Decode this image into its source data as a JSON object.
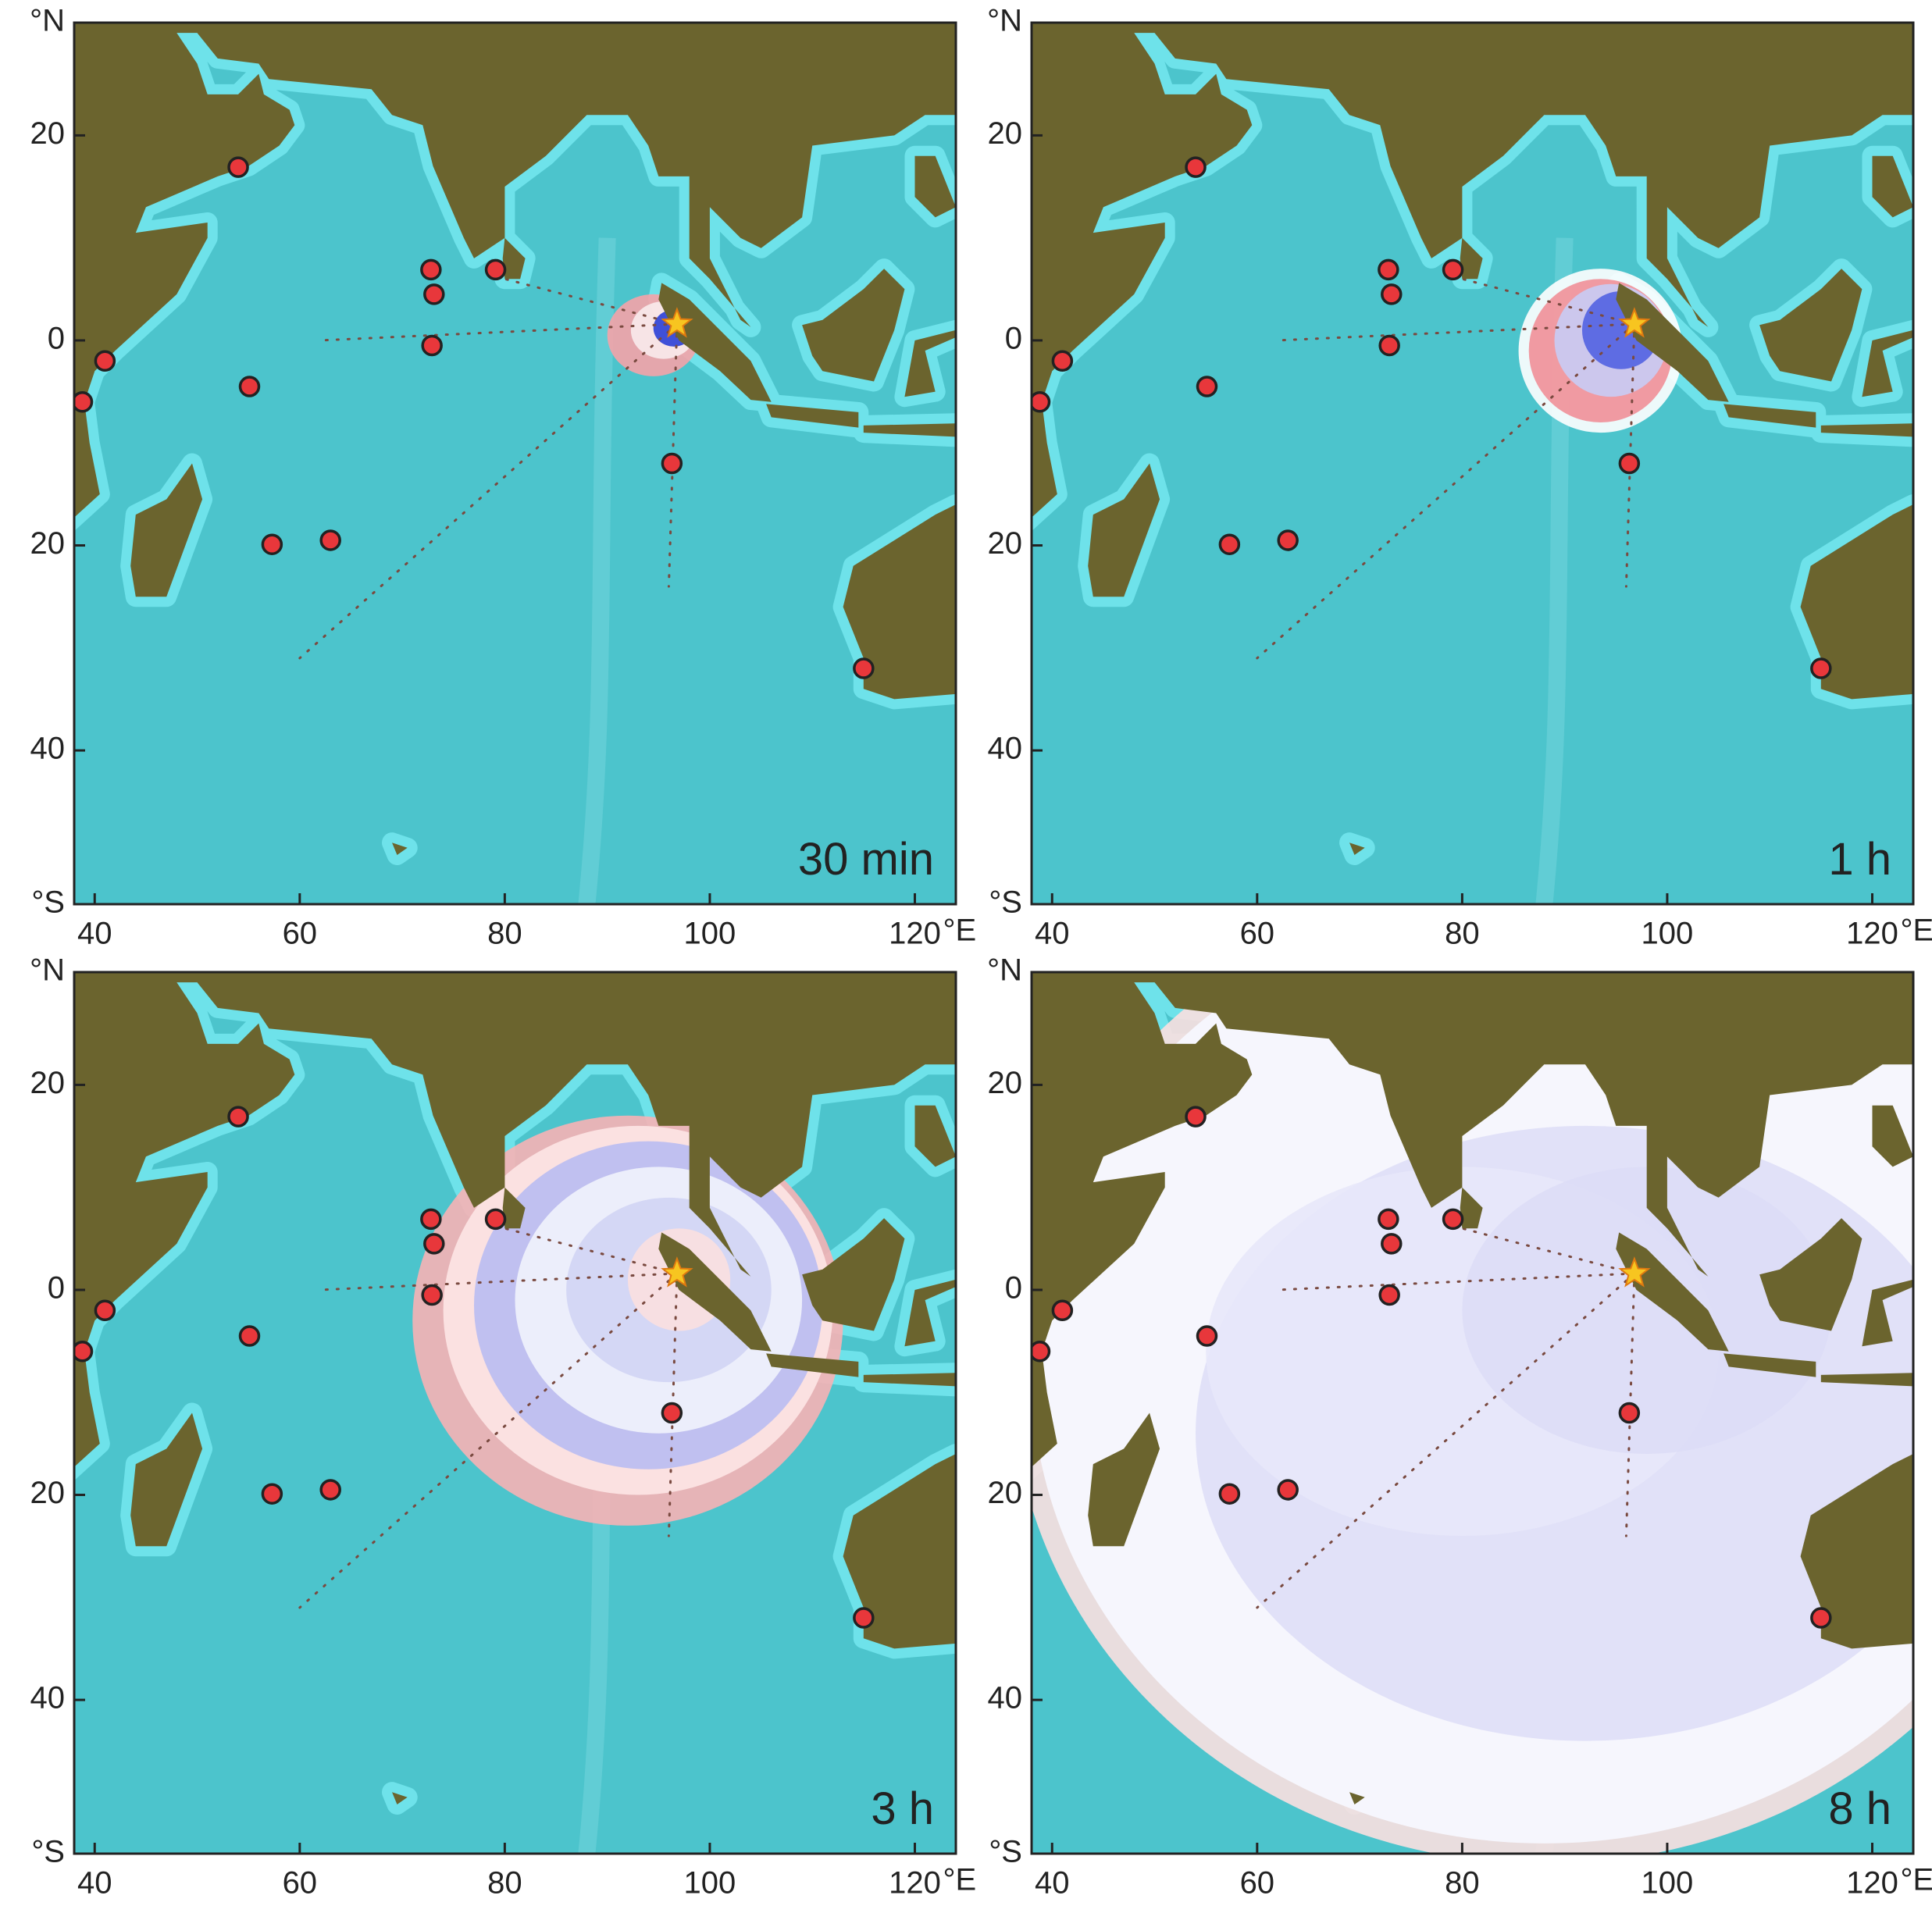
{
  "map": {
    "xlim": [
      38,
      124
    ],
    "ylim": [
      -55,
      31
    ],
    "xticks": [
      40,
      60,
      80,
      100,
      120
    ],
    "x_unit": "°E",
    "yticks": [
      {
        "value": 31,
        "label": "°N"
      },
      {
        "value": 20,
        "label": "20"
      },
      {
        "value": 0,
        "label": "0"
      },
      {
        "value": -20,
        "label": "20"
      },
      {
        "value": -40,
        "label": "40"
      },
      {
        "value": -55,
        "label": "°S"
      }
    ],
    "stations": [
      {
        "lon": 54.0,
        "lat": 16.9
      },
      {
        "lon": 41.0,
        "lat": -2.0
      },
      {
        "lon": 38.8,
        "lat": -6.0
      },
      {
        "lon": 55.1,
        "lat": -4.5
      },
      {
        "lon": 57.3,
        "lat": -19.9
      },
      {
        "lon": 63.0,
        "lat": -19.5
      },
      {
        "lon": 72.8,
        "lat": 6.9
      },
      {
        "lon": 73.1,
        "lat": 4.5
      },
      {
        "lon": 72.9,
        "lat": -0.5
      },
      {
        "lon": 79.1,
        "lat": 6.9
      },
      {
        "lon": 96.3,
        "lat": -12.0
      },
      {
        "lon": 115.0,
        "lat": -32.0
      }
    ],
    "epicenter": {
      "lon": 96.8,
      "lat": 1.6
    },
    "panels": [
      {
        "label": "30 min"
      },
      {
        "label": "1 h"
      },
      {
        "label": "3 h"
      },
      {
        "label": "8 h"
      }
    ]
  }
}
